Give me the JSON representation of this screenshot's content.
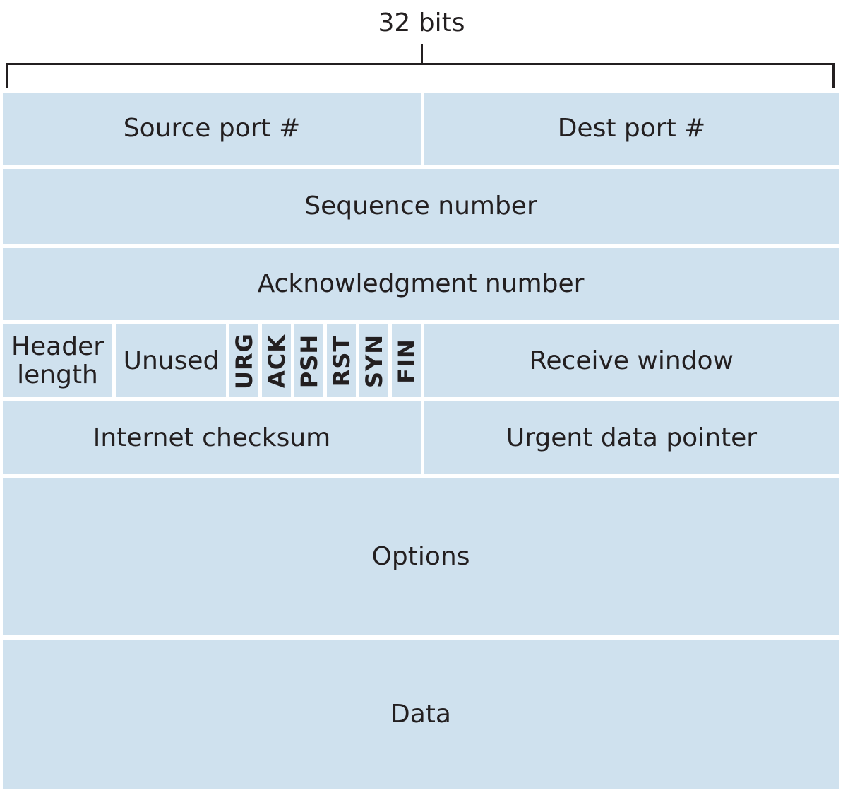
{
  "header": {
    "width_label": "32 bits"
  },
  "rows": {
    "row1": {
      "source_port": "Source port #",
      "dest_port": "Dest port #"
    },
    "row2": {
      "sequence_number": "Sequence number"
    },
    "row3": {
      "acknowledgment_number": "Acknowledgment number"
    },
    "row4": {
      "header_length": "Header length",
      "unused": "Unused",
      "flags": [
        "URG",
        "ACK",
        "PSH",
        "RST",
        "SYN",
        "FIN"
      ],
      "receive_window": "Receive window"
    },
    "row5": {
      "internet_checksum": "Internet checksum",
      "urgent_data_pointer": "Urgent data pointer"
    },
    "row6": {
      "options": "Options"
    },
    "row7": {
      "data": "Data"
    }
  },
  "colors": {
    "field_fill": "#cfe1ee",
    "text": "#231f20",
    "background": "#ffffff"
  }
}
